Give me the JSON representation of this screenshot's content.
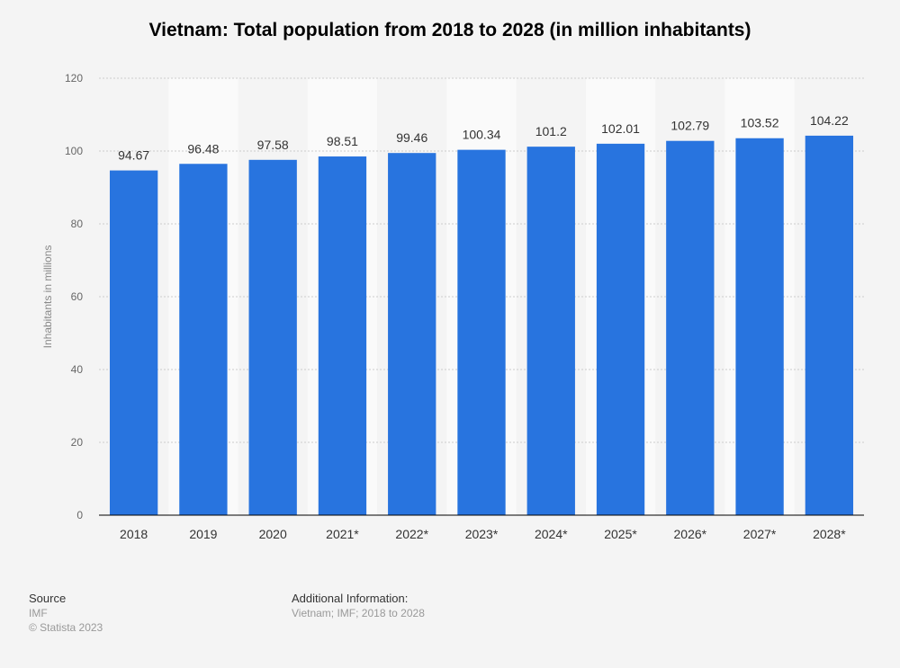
{
  "chart_data": {
    "type": "bar",
    "title": "Vietnam: Total population from 2018 to 2028 (in million inhabitants)",
    "xlabel": "",
    "ylabel": "Inhabitants in millions",
    "categories": [
      "2018",
      "2019",
      "2020",
      "2021*",
      "2022*",
      "2023*",
      "2024*",
      "2025*",
      "2026*",
      "2027*",
      "2028*"
    ],
    "values": [
      94.67,
      96.48,
      97.58,
      98.51,
      99.46,
      100.34,
      101.2,
      102.01,
      102.79,
      103.52,
      104.22
    ],
    "value_labels": [
      "94.67",
      "96.48",
      "97.58",
      "98.51",
      "99.46",
      "100.34",
      "101.2",
      "102.01",
      "102.79",
      "103.52",
      "104.22"
    ],
    "ylim": [
      0,
      120
    ],
    "yticks": [
      0,
      20,
      40,
      60,
      80,
      100,
      120
    ],
    "grid": true,
    "colors": {
      "bar": "#2874df",
      "band": "#fafafa",
      "grid": "#cccccc",
      "axis": "#000000"
    }
  },
  "footer": {
    "source_heading": "Source",
    "source": "IMF",
    "copyright": "© Statista 2023",
    "additional_heading": "Additional Information:",
    "additional": "Vietnam; IMF; 2018 to 2028"
  }
}
